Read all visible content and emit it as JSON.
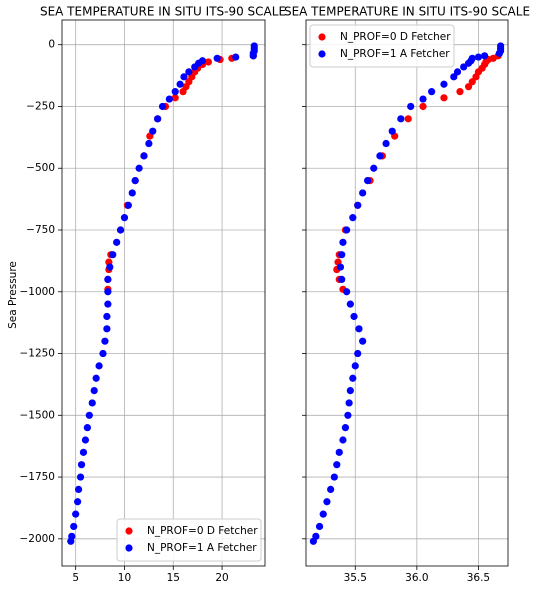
{
  "chart_data": [
    {
      "type": "scatter",
      "title": "SEA TEMPERATURE IN SITU ITS-90 SCALE",
      "ylabel": "Sea Pressure",
      "xlim": [
        3.6,
        24.4
      ],
      "xticks": [
        5,
        10,
        15,
        20
      ],
      "ylim": [
        -2110,
        100
      ],
      "yticks": [
        0,
        {
          "value": -250,
          "label": "−250"
        },
        {
          "value": -500,
          "label": "−500"
        },
        {
          "value": -750,
          "label": "−750"
        },
        {
          "value": -1000,
          "label": "−1000"
        },
        {
          "value": -1250,
          "label": "−1250"
        },
        {
          "value": -1500,
          "label": "−1500"
        },
        {
          "value": -1750,
          "label": "−1750"
        },
        {
          "value": -2000,
          "label": "−2000"
        }
      ],
      "grid": true,
      "legend": "lower right",
      "series": [
        {
          "name": "N_PROF=0 D Fetcher",
          "color": "#ff0000",
          "x": [
            23.2,
            21.0,
            19.8,
            18.6,
            18.0,
            17.5,
            17.2,
            16.9,
            16.6,
            16.3,
            16.0,
            15.2,
            14.2,
            13.4,
            12.6,
            12.0,
            11.1,
            10.3,
            9.6,
            8.6,
            8.4,
            8.4,
            8.3,
            8.3
          ],
          "y": [
            -45,
            -55,
            -60,
            -70,
            -80,
            -95,
            -110,
            -130,
            -150,
            -170,
            -190,
            -215,
            -250,
            -300,
            -370,
            -450,
            -550,
            -650,
            -750,
            -850,
            -880,
            -910,
            -950,
            -990
          ]
        },
        {
          "name": "N_PROF=1 A Fetcher",
          "color": "#0000ff",
          "x": [
            23.3,
            23.3,
            23.3,
            23.2,
            23.2,
            21.4,
            19.5,
            18.0,
            17.6,
            17.2,
            16.6,
            16.1,
            15.7,
            15.2,
            14.6,
            13.9,
            13.4,
            12.9,
            12.5,
            12.0,
            11.5,
            11.1,
            10.8,
            10.4,
            10.0,
            9.6,
            9.2,
            8.8,
            8.5,
            8.3,
            8.3,
            8.3,
            8.2,
            8.2,
            8.0,
            7.8,
            7.4,
            7.1,
            6.9,
            6.7,
            6.4,
            6.2,
            6.0,
            5.8,
            5.6,
            5.5,
            5.3,
            5.2,
            5.0,
            4.8,
            4.6,
            4.5
          ],
          "y": [
            -5,
            -15,
            -25,
            -35,
            -45,
            -50,
            -55,
            -65,
            -75,
            -90,
            -110,
            -130,
            -160,
            -190,
            -220,
            -250,
            -300,
            -350,
            -400,
            -450,
            -500,
            -550,
            -600,
            -650,
            -700,
            -750,
            -800,
            -850,
            -900,
            -950,
            -1000,
            -1050,
            -1100,
            -1150,
            -1200,
            -1250,
            -1300,
            -1350,
            -1400,
            -1450,
            -1500,
            -1550,
            -1600,
            -1650,
            -1700,
            -1750,
            -1800,
            -1850,
            -1900,
            -1950,
            -1990,
            -2010
          ]
        }
      ]
    },
    {
      "type": "scatter",
      "title": "SEA TEMPERATURE IN SITU ITS-90 SCALE",
      "xlim": [
        35.1,
        36.74
      ],
      "xticks": [
        35.5,
        {
          "value": 36.0,
          "label": "36.0"
        },
        36.5
      ],
      "grid": true,
      "legend": "upper left",
      "series": [
        {
          "name": "N_PROF=0 D Fetcher",
          "color": "#ff0000",
          "x": [
            36.66,
            36.62,
            36.58,
            36.56,
            36.55,
            36.53,
            36.5,
            36.48,
            36.45,
            36.42,
            36.35,
            36.22,
            36.05,
            35.93,
            35.82,
            35.72,
            35.62,
            35.52,
            35.42,
            35.37,
            35.36,
            35.35,
            35.37,
            35.4
          ],
          "y": [
            -45,
            -55,
            -60,
            -70,
            -80,
            -95,
            -110,
            -130,
            -150,
            -170,
            -190,
            -215,
            -250,
            -300,
            -370,
            -450,
            -550,
            -650,
            -750,
            -850,
            -880,
            -910,
            -950,
            -990
          ]
        },
        {
          "name": "N_PROF=1 A Fetcher",
          "color": "#0000ff",
          "x": [
            36.68,
            36.68,
            36.68,
            36.67,
            36.55,
            36.5,
            36.45,
            36.44,
            36.42,
            36.38,
            36.33,
            36.3,
            36.22,
            36.12,
            36.05,
            35.95,
            35.87,
            35.8,
            35.75,
            35.7,
            35.65,
            35.6,
            35.56,
            35.52,
            35.48,
            35.43,
            35.4,
            35.39,
            35.38,
            35.39,
            35.43,
            35.46,
            35.49,
            35.53,
            35.56,
            35.52,
            35.5,
            35.48,
            35.46,
            35.45,
            35.44,
            35.42,
            35.4,
            35.37,
            35.35,
            35.33,
            35.3,
            35.27,
            35.24,
            35.21,
            35.18,
            35.16
          ],
          "y": [
            -5,
            -15,
            -25,
            -35,
            -45,
            -50,
            -55,
            -65,
            -75,
            -90,
            -110,
            -130,
            -160,
            -190,
            -220,
            -250,
            -300,
            -350,
            -400,
            -450,
            -500,
            -550,
            -600,
            -650,
            -700,
            -750,
            -800,
            -850,
            -900,
            -950,
            -1000,
            -1050,
            -1100,
            -1150,
            -1200,
            -1250,
            -1300,
            -1350,
            -1400,
            -1450,
            -1500,
            -1550,
            -1600,
            -1650,
            -1700,
            -1750,
            -1800,
            -1850,
            -1900,
            -1950,
            -1990,
            -2010
          ]
        }
      ]
    }
  ]
}
